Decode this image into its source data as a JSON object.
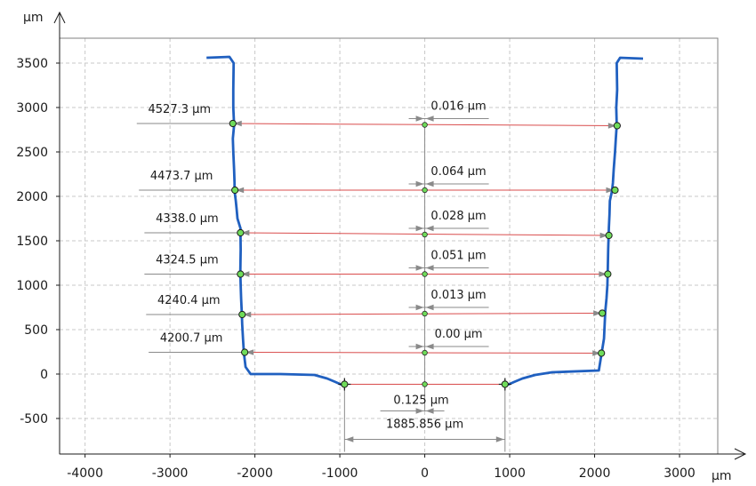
{
  "chart_data": {
    "type": "line",
    "x_unit": "µm",
    "y_unit": "µm",
    "xlim": [
      -4300,
      3450
    ],
    "ylim": [
      -900,
      3780
    ],
    "x_ticks": [
      -4000,
      -3000,
      -2000,
      -1000,
      0,
      1000,
      2000,
      3000
    ],
    "x_tick_labels": [
      "-4000",
      "-3000",
      "-2000",
      "-1000",
      "0",
      "1000",
      "2000",
      "3000"
    ],
    "y_ticks": [
      -500,
      0,
      500,
      1000,
      1500,
      2000,
      2500,
      3000,
      3500
    ],
    "y_tick_labels": [
      "-500",
      "0",
      "500",
      "1000",
      "1500",
      "2000",
      "2500",
      "3000",
      "3500"
    ],
    "grid": true,
    "colors": {
      "profile": "#2060c0",
      "measurement": "#d94c4c",
      "dimension": "#8a8a8a",
      "point": "#6fdc5a"
    },
    "series": [
      {
        "x": [
          -2570,
          -2300,
          -2250,
          -2255,
          -2255,
          -2245,
          -2260,
          -2255,
          -2245,
          -2240,
          -2240,
          -2225,
          -2215,
          -2205,
          -2170,
          -2170,
          -2168,
          -2172,
          -2168,
          -2162,
          -2155,
          -2150,
          -2140,
          -2130,
          -2110,
          -2050,
          -1700,
          -1300,
          -1150,
          -1050,
          -980
        ],
        "y": [
          3560,
          3570,
          3500,
          3200,
          3000,
          2800,
          2650,
          2500,
          2300,
          2150,
          2060,
          1950,
          1850,
          1750,
          1640,
          1580,
          1400,
          1150,
          1000,
          850,
          700,
          560,
          400,
          240,
          80,
          0,
          0,
          -10,
          -50,
          -90,
          -120
        ]
      },
      {
        "x": [
          2570,
          2300,
          2260,
          2265,
          2255,
          2260,
          2250,
          2240,
          2225,
          2215,
          2205,
          2180,
          2175,
          2168,
          2160,
          2155,
          2150,
          2140,
          2125,
          2110,
          2050,
          1500,
          1300,
          1150,
          1050,
          980
        ],
        "y": [
          3550,
          3560,
          3500,
          3200,
          3000,
          2800,
          2650,
          2500,
          2300,
          2150,
          2060,
          1950,
          1800,
          1650,
          1400,
          1150,
          1000,
          850,
          700,
          400,
          40,
          20,
          -10,
          -50,
          -90,
          -120
        ]
      }
    ],
    "width_measurements": [
      {
        "label": "4527.3 µm",
        "x_left": -2260,
        "y_left": 2820,
        "x_right": 2265,
        "y_right": 2795,
        "center_y": 2805,
        "offset_label": "0.016 µm"
      },
      {
        "label": "4473.7 µm",
        "x_left": -2235,
        "y_left": 2070,
        "x_right": 2240,
        "y_right": 2070,
        "center_y": 2070,
        "offset_label": "0.064 µm"
      },
      {
        "label": "4338.0 µm",
        "x_left": -2170,
        "y_left": 1590,
        "x_right": 2168,
        "y_right": 1560,
        "center_y": 1570,
        "offset_label": "0.028 µm"
      },
      {
        "label": "4324.5 µm",
        "x_left": -2170,
        "y_left": 1125,
        "x_right": 2155,
        "y_right": 1125,
        "center_y": 1125,
        "offset_label": "0.051 µm"
      },
      {
        "label": "4240.4 µm",
        "x_left": -2150,
        "y_left": 670,
        "x_right": 2090,
        "y_right": 685,
        "center_y": 680,
        "offset_label": "0.013 µm"
      },
      {
        "label": "4200.7 µm",
        "x_left": -2120,
        "y_left": 245,
        "x_right": 2080,
        "y_right": 235,
        "center_y": 240,
        "offset_label": "0.00 µm"
      }
    ],
    "bottom_measurement": {
      "x_left": -945,
      "x_right": 945,
      "y": -115,
      "offset_label": "0.125 µm",
      "width_label": "1885.856 µm"
    }
  }
}
